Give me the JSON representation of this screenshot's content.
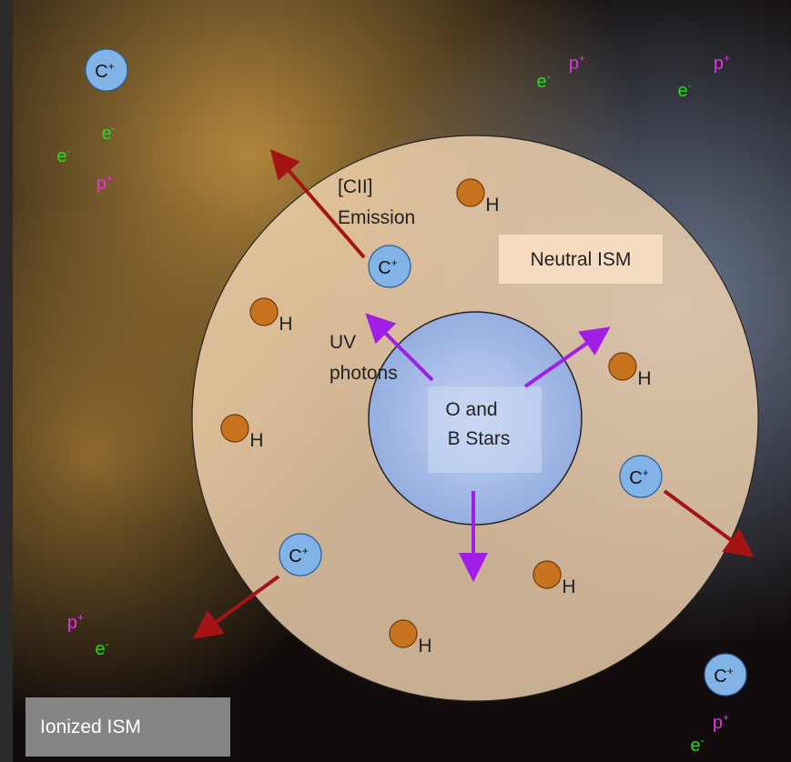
{
  "regions": {
    "ionized": "Ionized ISM",
    "neutral": "Neutral ISM",
    "stars": [
      "O and",
      "B Stars"
    ]
  },
  "annotations": {
    "emission": [
      "[CII]",
      "Emission"
    ],
    "uv": [
      "UV",
      "photons"
    ]
  },
  "carbon_ions": [
    {
      "symbol": "C",
      "charge": "+"
    },
    {
      "symbol": "C",
      "charge": "+"
    },
    {
      "symbol": "C",
      "charge": "+"
    },
    {
      "symbol": "C",
      "charge": "+"
    },
    {
      "symbol": "C",
      "charge": "+"
    }
  ],
  "hydrogen": [
    "H",
    "H",
    "H",
    "H",
    "H",
    "H"
  ],
  "electrons": [
    {
      "symbol": "e",
      "charge": "-"
    },
    {
      "symbol": "e",
      "charge": "-"
    },
    {
      "symbol": "e",
      "charge": "-"
    },
    {
      "symbol": "e",
      "charge": "-"
    },
    {
      "symbol": "e",
      "charge": "-"
    },
    {
      "symbol": "e",
      "charge": "-"
    }
  ],
  "protons": [
    {
      "symbol": "p",
      "charge": "+"
    },
    {
      "symbol": "p",
      "charge": "+"
    },
    {
      "symbol": "p",
      "charge": "+"
    },
    {
      "symbol": "p",
      "charge": "+"
    },
    {
      "symbol": "p",
      "charge": "+"
    }
  ]
}
